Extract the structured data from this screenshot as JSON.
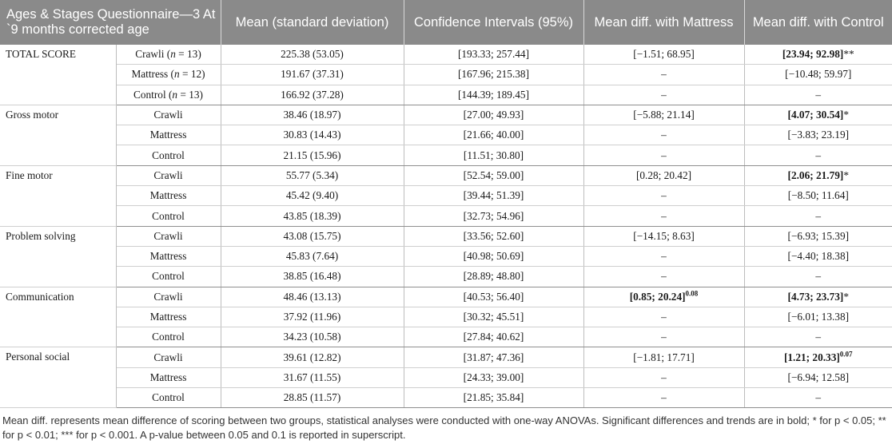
{
  "header": {
    "col1": "Ages & Stages Questionnaire—3 At `9 months corrected age",
    "col2": "Mean (standard deviation)",
    "col3": "Confidence Intervals (95%)",
    "col4": "Mean diff. with Mattress",
    "col5": "Mean diff. with Control"
  },
  "groups": [
    {
      "name": "TOTAL SCORE",
      "rows": [
        {
          "cond": "Crawli",
          "n": "13",
          "mean": "225.38 (53.05)",
          "ci": "[193.33; 257.44]",
          "mdm": "[−1.51; 68.95]",
          "mdm_bold": false,
          "mdm_mark": "",
          "mdc": "[23.94; 92.98]",
          "mdc_bold": true,
          "mdc_mark": "**"
        },
        {
          "cond": "Mattress",
          "n": "12",
          "mean": "191.67 (37.31)",
          "ci": "[167.96; 215.38]",
          "mdm": "–",
          "mdm_bold": false,
          "mdm_mark": "",
          "mdc": "[−10.48; 59.97]",
          "mdc_bold": false,
          "mdc_mark": ""
        },
        {
          "cond": "Control",
          "n": "13",
          "mean": "166.92 (37.28)",
          "ci": "[144.39; 189.45]",
          "mdm": "–",
          "mdm_bold": false,
          "mdm_mark": "",
          "mdc": "–",
          "mdc_bold": false,
          "mdc_mark": ""
        }
      ]
    },
    {
      "name": "Gross motor",
      "rows": [
        {
          "cond": "Crawli",
          "mean": "38.46 (18.97)",
          "ci": "[27.00; 49.93]",
          "mdm": "[−5.88; 21.14]",
          "mdm_bold": false,
          "mdm_mark": "",
          "mdc": "[4.07; 30.54]",
          "mdc_bold": true,
          "mdc_mark": "*"
        },
        {
          "cond": "Mattress",
          "mean": "30.83 (14.43)",
          "ci": "[21.66; 40.00]",
          "mdm": "–",
          "mdm_bold": false,
          "mdm_mark": "",
          "mdc": "[−3.83; 23.19]",
          "mdc_bold": false,
          "mdc_mark": ""
        },
        {
          "cond": "Control",
          "mean": "21.15 (15.96)",
          "ci": "[11.51; 30.80]",
          "mdm": "–",
          "mdm_bold": false,
          "mdm_mark": "",
          "mdc": "–",
          "mdc_bold": false,
          "mdc_mark": ""
        }
      ]
    },
    {
      "name": "Fine motor",
      "rows": [
        {
          "cond": "Crawli",
          "mean": "55.77 (5.34)",
          "ci": "[52.54; 59.00]",
          "mdm": "[0.28; 20.42]",
          "mdm_bold": false,
          "mdm_mark": "",
          "mdc": "[2.06; 21.79]",
          "mdc_bold": true,
          "mdc_mark": "*"
        },
        {
          "cond": "Mattress",
          "mean": "45.42 (9.40)",
          "ci": "[39.44; 51.39]",
          "mdm": "–",
          "mdm_bold": false,
          "mdm_mark": "",
          "mdc": "[−8.50; 11.64]",
          "mdc_bold": false,
          "mdc_mark": ""
        },
        {
          "cond": "Control",
          "mean": "43.85 (18.39)",
          "ci": "[32.73; 54.96]",
          "mdm": "–",
          "mdm_bold": false,
          "mdm_mark": "",
          "mdc": "–",
          "mdc_bold": false,
          "mdc_mark": ""
        }
      ]
    },
    {
      "name": "Problem solving",
      "rows": [
        {
          "cond": "Crawli",
          "mean": "43.08 (15.75)",
          "ci": "[33.56; 52.60]",
          "mdm": "[−14.15; 8.63]",
          "mdm_bold": false,
          "mdm_mark": "",
          "mdc": "[−6.93; 15.39]",
          "mdc_bold": false,
          "mdc_mark": ""
        },
        {
          "cond": "Mattress",
          "mean": "45.83 (7.64)",
          "ci": "[40.98; 50.69]",
          "mdm": "–",
          "mdm_bold": false,
          "mdm_mark": "",
          "mdc": "[−4.40; 18.38]",
          "mdc_bold": false,
          "mdc_mark": ""
        },
        {
          "cond": "Control",
          "mean": "38.85 (16.48)",
          "ci": "[28.89; 48.80]",
          "mdm": "–",
          "mdm_bold": false,
          "mdm_mark": "",
          "mdc": "–",
          "mdc_bold": false,
          "mdc_mark": ""
        }
      ]
    },
    {
      "name": "Communication",
      "rows": [
        {
          "cond": "Crawli",
          "mean": "48.46 (13.13)",
          "ci": "[40.53; 56.40]",
          "mdm": "[0.85; 20.24]",
          "mdm_bold": true,
          "mdm_sup": "0.08",
          "mdm_mark": "",
          "mdc": "[4.73; 23.73]",
          "mdc_bold": true,
          "mdc_mark": "*"
        },
        {
          "cond": "Mattress",
          "mean": "37.92 (11.96)",
          "ci": "[30.32; 45.51]",
          "mdm": "–",
          "mdm_bold": false,
          "mdm_mark": "",
          "mdc": "[−6.01; 13.38]",
          "mdc_bold": false,
          "mdc_mark": ""
        },
        {
          "cond": "Control",
          "mean": "34.23 (10.58)",
          "ci": "[27.84; 40.62]",
          "mdm": "–",
          "mdm_bold": false,
          "mdm_mark": "",
          "mdc": "–",
          "mdc_bold": false,
          "mdc_mark": ""
        }
      ]
    },
    {
      "name": "Personal social",
      "rows": [
        {
          "cond": "Crawli",
          "mean": "39.61 (12.82)",
          "ci": "[31.87; 47.36]",
          "mdm": "[−1.81; 17.71]",
          "mdm_bold": false,
          "mdm_mark": "",
          "mdc": "[1.21; 20.33]",
          "mdc_bold": true,
          "mdc_sup": "0.07",
          "mdc_mark": ""
        },
        {
          "cond": "Mattress",
          "mean": "31.67 (11.55)",
          "ci": "[24.33; 39.00]",
          "mdm": "–",
          "mdm_bold": false,
          "mdm_mark": "",
          "mdc": "[−6.94; 12.58]",
          "mdc_bold": false,
          "mdc_mark": ""
        },
        {
          "cond": "Control",
          "mean": "28.85 (11.57)",
          "ci": "[21.85; 35.84]",
          "mdm": "–",
          "mdm_bold": false,
          "mdm_mark": "",
          "mdc": "–",
          "mdc_bold": false,
          "mdc_mark": ""
        }
      ]
    }
  ],
  "footnote": {
    "line1": "Mean diff. represents mean difference of scoring between two groups, statistical analyses were conducted with one-way ANOVAs. Significant differences and trends are in bold; * for p < 0.05; ** for p < 0.01; *** for p < 0.001. A p-value between 0.05 and 0.1 is reported in superscript."
  }
}
